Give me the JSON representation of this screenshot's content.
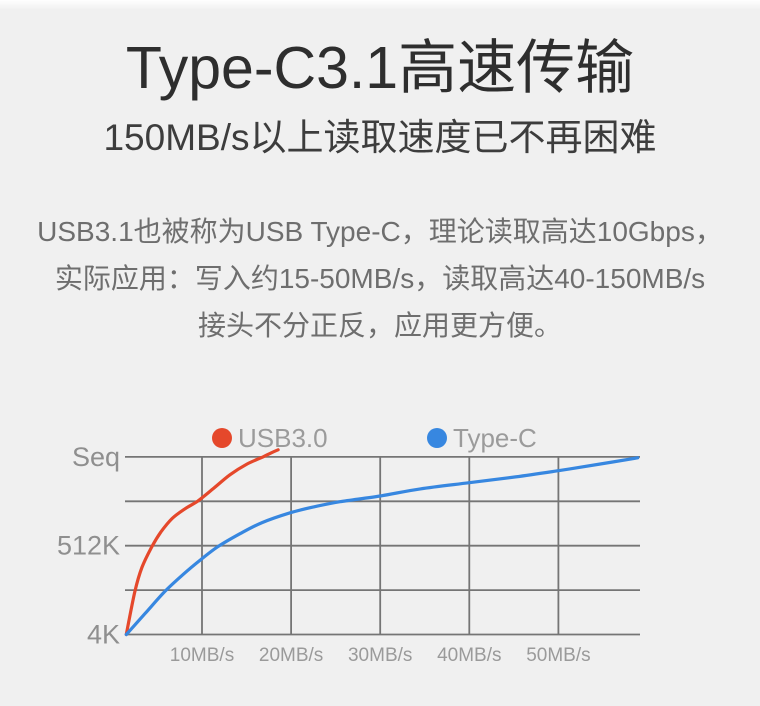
{
  "page": {
    "background": "#f0f0f0"
  },
  "header": {
    "title": "Type-C3.1高速传输",
    "subtitle": "150MB/s以上读取速度已不再困难"
  },
  "description": {
    "lines": [
      "USB3.1也被称为USB Type-C，理论读取高达10Gbps，",
      "实际应用：写入约15-50MB/s，读取高达40-150MB/s",
      "接头不分正反，应用更方便。"
    ]
  },
  "chart_data": {
    "type": "line",
    "title": "",
    "xlabel": "",
    "ylabel": "",
    "x_unit": "MB/s",
    "xlim_mbps": [
      1.5,
      59
    ],
    "y_levels": [
      {
        "label": "4K",
        "level": 0
      },
      {
        "label": "512K",
        "level": 2
      },
      {
        "label": "Seq",
        "level": 4
      }
    ],
    "x_ticks": [
      {
        "label": "10MB/s",
        "value": 10
      },
      {
        "label": "20MB/s",
        "value": 20
      },
      {
        "label": "30MB/s",
        "value": 30
      },
      {
        "label": "40MB/s",
        "value": 40
      },
      {
        "label": "50MB/s",
        "value": 50
      }
    ],
    "grid": true,
    "legend_position": "top",
    "legend": [
      {
        "label": "USB3.0",
        "color": "#e5482b"
      },
      {
        "label": "Type-C",
        "color": "#3787e0"
      }
    ],
    "colors": {
      "grid": "#757575",
      "y_tick_text": "#8f8f8f",
      "x_tick_text": "#9a9a9a",
      "legend_text": "#9b9b9b"
    },
    "series": [
      {
        "name": "USB3.0",
        "color": "#e5482b",
        "points": [
          [
            1.5,
            0
          ],
          [
            2.47,
            0.97
          ],
          [
            3.26,
            1.51
          ],
          [
            4.38,
            1.98
          ],
          [
            5.39,
            2.31
          ],
          [
            6.63,
            2.61
          ],
          [
            8.09,
            2.83
          ],
          [
            9.55,
            3.01
          ],
          [
            11.35,
            3.3
          ],
          [
            13.15,
            3.6
          ],
          [
            15.06,
            3.84
          ],
          [
            16.85,
            4.0
          ],
          [
            17.75,
            4.09
          ],
          [
            18.54,
            4.16
          ]
        ]
      },
      {
        "name": "Type-C",
        "color": "#3787e0",
        "points": [
          [
            1.5,
            0
          ],
          [
            3.6,
            0.47
          ],
          [
            5.84,
            0.97
          ],
          [
            7.87,
            1.35
          ],
          [
            9.89,
            1.69
          ],
          [
            11.8,
            1.98
          ],
          [
            14.27,
            2.27
          ],
          [
            16.74,
            2.52
          ],
          [
            19.89,
            2.74
          ],
          [
            22.7,
            2.88
          ],
          [
            25.5,
            2.99
          ],
          [
            30,
            3.12
          ],
          [
            34.5,
            3.28
          ],
          [
            40,
            3.42
          ],
          [
            45.2,
            3.55
          ],
          [
            50,
            3.69
          ],
          [
            54.7,
            3.84
          ],
          [
            58.9,
            3.98
          ]
        ]
      }
    ]
  }
}
